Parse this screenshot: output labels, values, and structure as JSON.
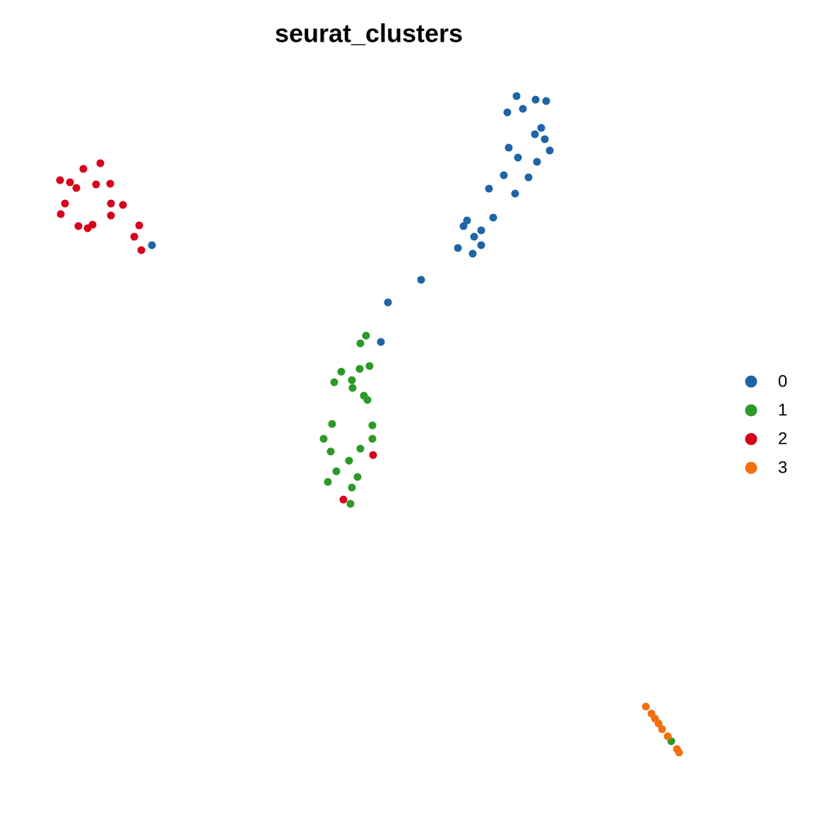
{
  "chart_data": {
    "type": "scatter",
    "title": "seurat_clusters",
    "xlim": [
      60,
      990
    ],
    "ylim": [
      1090,
      110
    ],
    "legend": "right",
    "grid": false,
    "series": [
      {
        "name": "0",
        "color": "#1f64a7",
        "x": [
          731,
          758,
          773,
          740,
          718,
          766,
          757,
          771,
          720,
          778,
          733,
          760,
          713,
          748,
          692,
          729,
          698,
          661,
          656,
          681,
          671,
          648,
          681,
          669,
          596,
          549,
          539,
          215
        ],
        "values": [
          136,
          141,
          143,
          154,
          159,
          181,
          190,
          197,
          209,
          213,
          223,
          229,
          248,
          251,
          267,
          274,
          308,
          312,
          320,
          326,
          335,
          351,
          347,
          359,
          396,
          428,
          484,
          347
        ]
      },
      {
        "name": "1",
        "color": "#2b9a28",
        "x": [
          518,
          510,
          523,
          509,
          483,
          498,
          473,
          499,
          515,
          520,
          470,
          527,
          458,
          527,
          468,
          510,
          494,
          476,
          506,
          464,
          498,
          496,
          950
        ],
        "values": [
          475,
          486,
          518,
          522,
          526,
          538,
          541,
          549,
          560,
          566,
          600,
          602,
          621,
          621,
          639,
          635,
          652,
          667,
          675,
          682,
          690,
          713,
          1049
        ]
      },
      {
        "name": "2",
        "color": "#d6001c",
        "x": [
          142,
          118,
          85,
          99,
          108,
          136,
          156,
          92,
          157,
          174,
          86,
          157,
          111,
          131,
          124,
          197,
          190,
          200,
          528,
          486
        ],
        "values": [
          231,
          239,
          255,
          258,
          266,
          261,
          260,
          288,
          288,
          290,
          303,
          305,
          320,
          318,
          323,
          319,
          335,
          354,
          644,
          707
        ]
      },
      {
        "name": "3",
        "color": "#f36f0f",
        "x": [
          914,
          922,
          927,
          932,
          937,
          945,
          958,
          961
        ],
        "values": [
          1000,
          1010,
          1017,
          1024,
          1032,
          1042,
          1060,
          1065
        ]
      }
    ]
  }
}
